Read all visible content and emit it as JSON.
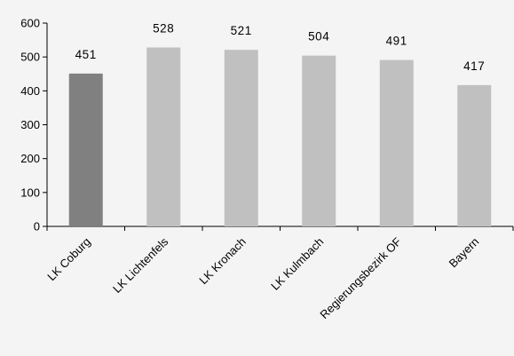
{
  "chart_data": {
    "type": "bar",
    "title": "",
    "xlabel": "",
    "ylabel": "",
    "ylim": [
      0,
      600
    ],
    "yticks": [
      0,
      100,
      200,
      300,
      400,
      500,
      600
    ],
    "grid": false,
    "categories": [
      "LK Coburg",
      "LK Lichtenfels",
      "LK Kronach",
      "LK Kulmbach",
      "Regierungsbezirk OF",
      "Bayern"
    ],
    "values": [
      451,
      528,
      521,
      504,
      491,
      417
    ],
    "value_labels": [
      "451",
      "528",
      "521",
      "504",
      "491",
      "417"
    ],
    "colors": [
      "#808080",
      "#c0c0c0",
      "#c0c0c0",
      "#c0c0c0",
      "#c0c0c0",
      "#c0c0c0"
    ]
  }
}
